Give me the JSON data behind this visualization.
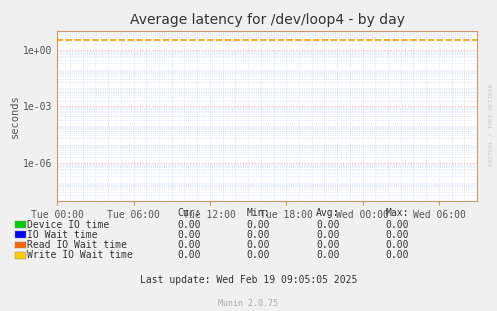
{
  "title": "Average latency for /dev/loop4 - by day",
  "ylabel": "seconds",
  "background_color": "#f0f0f0",
  "plot_bg_color": "#ffffff",
  "grid_major_color": "#ffaaaa",
  "grid_minor_color": "#c8d8f0",
  "ylim_min": 1e-08,
  "ylim_max": 10.0,
  "yticks": [
    1.0,
    0.001,
    1e-06
  ],
  "ytick_labels": [
    "1e+00",
    "1e-03",
    "1e-06"
  ],
  "x_ticks_labels": [
    "Tue 00:00",
    "Tue 06:00",
    "Tue 12:00",
    "Tue 18:00",
    "Wed 00:00",
    "Wed 06:00"
  ],
  "x_ticks_pos": [
    0,
    6,
    12,
    18,
    24,
    30
  ],
  "x_range": [
    0,
    33
  ],
  "dashed_line_y": 3.5,
  "dashed_line_color": "#ff9900",
  "axis_border_color": "#cc9966",
  "watermark": "RRDTOOL / TOBI OETIKER",
  "munin_version": "Munin 2.0.75",
  "legend_items": [
    {
      "label": "Device IO time",
      "color": "#00cc00"
    },
    {
      "label": "IO Wait time",
      "color": "#0000ff"
    },
    {
      "label": "Read IO Wait time",
      "color": "#ff6600"
    },
    {
      "label": "Write IO Wait time",
      "color": "#ffcc00"
    }
  ],
  "table_headers": [
    "Cur:",
    "Min:",
    "Avg:",
    "Max:"
  ],
  "table_values": [
    [
      "0.00",
      "0.00",
      "0.00",
      "0.00"
    ],
    [
      "0.00",
      "0.00",
      "0.00",
      "0.00"
    ],
    [
      "0.00",
      "0.00",
      "0.00",
      "0.00"
    ],
    [
      "0.00",
      "0.00",
      "0.00",
      "0.00"
    ]
  ],
  "last_update": "Last update: Wed Feb 19 09:05:05 2025",
  "title_fontsize": 10,
  "ylabel_fontsize": 7.5,
  "tick_fontsize": 7,
  "legend_fontsize": 7,
  "table_fontsize": 7,
  "footer_fontsize": 6
}
